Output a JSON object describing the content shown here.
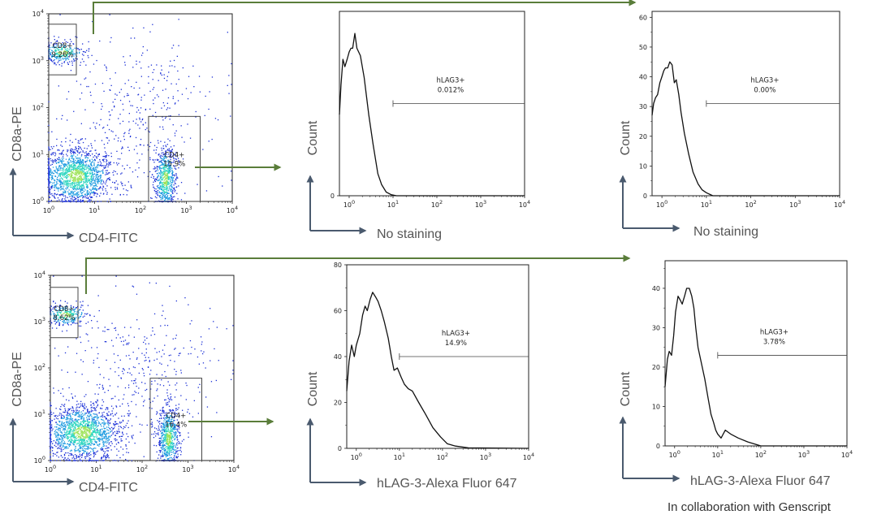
{
  "credit": "In collaboration with Genscript",
  "colors": {
    "flow_arrow": "#5a7d3a",
    "axis_arrow": "#4a5a6e",
    "label_gray": "#555555",
    "density": [
      "#1a2fd6",
      "#1f9be0",
      "#2fd6c0",
      "#9ee35a"
    ]
  },
  "chart_data": [
    {
      "id": "dot-top",
      "type": "scatter",
      "xlabel": "CD4-FITC",
      "ylabel": "CD8a-PE",
      "xscale": "log",
      "yscale": "log",
      "xlim": [
        1,
        10000
      ],
      "ylim": [
        1,
        10000
      ],
      "x_tick_labels": [
        [
          "10",
          "0"
        ],
        [
          "10",
          "1"
        ],
        [
          "10",
          "2"
        ],
        [
          "10",
          "3"
        ],
        [
          "10",
          "4"
        ]
      ],
      "y_tick_labels": [
        [
          "10",
          "0"
        ],
        [
          "10",
          "1"
        ],
        [
          "10",
          "2"
        ],
        [
          "10",
          "3"
        ],
        [
          "10",
          "4"
        ]
      ],
      "gates": [
        {
          "name": "CD8+",
          "percent": "9.26%",
          "x_range": [
            1,
            4
          ],
          "y_range": [
            500,
            6000
          ]
        },
        {
          "name": "CD4+",
          "percent": "15.9%",
          "x_range": [
            150,
            2000
          ],
          "y_range": [
            1,
            65
          ]
        }
      ],
      "populations": [
        {
          "center": [
            4,
            3.5
          ],
          "spread": [
            0.4,
            0.3
          ],
          "count": 1600
        },
        {
          "center": [
            350,
            3
          ],
          "spread": [
            0.12,
            0.35
          ],
          "count": 650
        },
        {
          "center": [
            2,
            1500
          ],
          "spread": [
            0.25,
            0.12
          ],
          "count": 300
        },
        {
          "center": [
            80,
            80
          ],
          "spread": [
            0.8,
            0.8
          ],
          "count": 350
        }
      ]
    },
    {
      "id": "hist-top-1",
      "type": "line",
      "xlabel": "No staining",
      "ylabel": "Count",
      "xscale": "log",
      "xlim": [
        0.6,
        10000
      ],
      "ylim": [
        0,
        50
      ],
      "y_tick_labels": [
        "0"
      ],
      "x_tick_labels": [
        [
          "10",
          "0"
        ],
        [
          "10",
          "1"
        ],
        [
          "10",
          "2"
        ],
        [
          "10",
          "3"
        ],
        [
          "10",
          "4"
        ]
      ],
      "gate": {
        "label": "hLAG3+",
        "percent": "0.012%",
        "x_range": [
          10,
          10000
        ],
        "y": 25
      },
      "x": [
        0.6,
        0.65,
        0.72,
        0.8,
        0.9,
        1.0,
        1.1,
        1.2,
        1.35,
        1.5,
        1.8,
        2.2,
        2.8,
        3.5,
        4.5,
        5.5,
        7,
        9,
        12,
        20,
        10000
      ],
      "y": [
        22,
        30,
        37,
        35,
        37,
        39,
        40,
        40,
        44,
        40,
        38,
        32,
        22,
        14,
        6,
        3,
        1,
        0.3,
        0,
        0,
        0
      ]
    },
    {
      "id": "hist-top-2",
      "type": "line",
      "xlabel": "No staining",
      "ylabel": "Count",
      "xscale": "log",
      "xlim": [
        0.6,
        10000
      ],
      "ylim": [
        0,
        62
      ],
      "y_tick_labels": [
        "0",
        "10",
        "20",
        "30",
        "40",
        "50",
        "60"
      ],
      "x_tick_labels": [
        [
          "10",
          "0"
        ],
        [
          "10",
          "1"
        ],
        [
          "10",
          "2"
        ],
        [
          "10",
          "3"
        ],
        [
          "10",
          "4"
        ]
      ],
      "gate": {
        "label": "hLAG3+",
        "percent": "0.00%",
        "x_range": [
          10,
          10000
        ],
        "y": 31
      },
      "x": [
        0.6,
        0.65,
        0.72,
        0.8,
        0.9,
        1.0,
        1.1,
        1.2,
        1.35,
        1.5,
        1.7,
        1.9,
        2.1,
        2.4,
        2.7,
        3.2,
        4,
        5,
        6.5,
        8,
        10,
        14,
        10000
      ],
      "y": [
        27,
        31,
        33,
        34,
        38,
        40,
        42,
        43,
        43,
        45,
        44,
        38,
        39,
        34,
        28,
        21,
        14,
        8,
        4,
        2,
        1,
        0,
        0
      ]
    },
    {
      "id": "dot-bottom",
      "type": "scatter",
      "xlabel": "CD4-FITC",
      "ylabel": "CD8a-PE",
      "xscale": "log",
      "yscale": "log",
      "xlim": [
        1,
        10000
      ],
      "ylim": [
        1,
        10000
      ],
      "x_tick_labels": [
        [
          "10",
          "0"
        ],
        [
          "10",
          "1"
        ],
        [
          "10",
          "2"
        ],
        [
          "10",
          "3"
        ],
        [
          "10",
          "4"
        ]
      ],
      "y_tick_labels": [
        [
          "10",
          "0"
        ],
        [
          "10",
          "1"
        ],
        [
          "10",
          "2"
        ],
        [
          "10",
          "3"
        ],
        [
          "10",
          "4"
        ]
      ],
      "gates": [
        {
          "name": "CD8+",
          "percent": "8.62%",
          "x_range": [
            1,
            4
          ],
          "y_range": [
            450,
            5500
          ]
        },
        {
          "name": "CD4+",
          "percent": "16.4%",
          "x_range": [
            150,
            2000
          ],
          "y_range": [
            1,
            60
          ]
        }
      ],
      "populations": [
        {
          "center": [
            5,
            4
          ],
          "spread": [
            0.42,
            0.3
          ],
          "count": 1600
        },
        {
          "center": [
            380,
            3
          ],
          "spread": [
            0.12,
            0.35
          ],
          "count": 700
        },
        {
          "center": [
            2.2,
            1400
          ],
          "spread": [
            0.25,
            0.12
          ],
          "count": 300
        },
        {
          "center": [
            90,
            90
          ],
          "spread": [
            0.8,
            0.8
          ],
          "count": 350
        }
      ]
    },
    {
      "id": "hist-bottom-1",
      "type": "line",
      "xlabel": "hLAG-3-Alexa Fluor 647",
      "ylabel": "Count",
      "xscale": "log",
      "xlim": [
        0.6,
        10000
      ],
      "ylim": [
        0,
        80
      ],
      "y_tick_labels": [
        "0",
        "20",
        "40",
        "60",
        "80"
      ],
      "x_tick_labels": [
        [
          "10",
          "0"
        ],
        [
          "10",
          "1"
        ],
        [
          "10",
          "2"
        ],
        [
          "10",
          "3"
        ],
        [
          "10",
          "4"
        ]
      ],
      "gate": {
        "label": "hLAG3+",
        "percent": "14.9%",
        "x_range": [
          10,
          10000
        ],
        "y": 40
      },
      "x": [
        0.6,
        0.68,
        0.78,
        0.9,
        1.0,
        1.2,
        1.4,
        1.6,
        1.8,
        2.1,
        2.4,
        2.8,
        3.2,
        3.8,
        4.5,
        5.5,
        6.5,
        7.5,
        9,
        11,
        13,
        16,
        20,
        28,
        40,
        60,
        90,
        130,
        200,
        400,
        10000
      ],
      "y": [
        25,
        38,
        45,
        40,
        45,
        50,
        58,
        62,
        60,
        65,
        68,
        66,
        64,
        60,
        55,
        48,
        40,
        34,
        35,
        31,
        28,
        26,
        25,
        20,
        15,
        9,
        5,
        2,
        1,
        0.2,
        0
      ]
    },
    {
      "id": "hist-bottom-2",
      "type": "line",
      "xlabel": "hLAG-3-Alexa Fluor 647",
      "ylabel": "Count",
      "xscale": "log",
      "xlim": [
        0.6,
        10000
      ],
      "ylim": [
        0,
        47
      ],
      "y_tick_labels": [
        "0",
        "10",
        "20",
        "30",
        "40"
      ],
      "x_tick_labels": [
        [
          "10",
          "0"
        ],
        [
          "10",
          "1"
        ],
        [
          "10",
          "2"
        ],
        [
          "10",
          "3"
        ],
        [
          "10",
          "4"
        ]
      ],
      "gate": {
        "label": "hLAG3+",
        "percent": "3.78%",
        "x_range": [
          10,
          10000
        ],
        "y": 23
      },
      "x": [
        0.6,
        0.68,
        0.75,
        0.85,
        0.95,
        1.05,
        1.2,
        1.35,
        1.5,
        1.7,
        1.9,
        2.2,
        2.5,
        2.8,
        3.1,
        3.5,
        4,
        5,
        6,
        7,
        8,
        9,
        10,
        12,
        15,
        20,
        30,
        50,
        100,
        10000
      ],
      "y": [
        15,
        22,
        24,
        23,
        28,
        34,
        38,
        37,
        36,
        38,
        40,
        40,
        38,
        35,
        30,
        25,
        22,
        17,
        12,
        8,
        6,
        4,
        3,
        2,
        4,
        3,
        2,
        1,
        0,
        0
      ]
    }
  ]
}
